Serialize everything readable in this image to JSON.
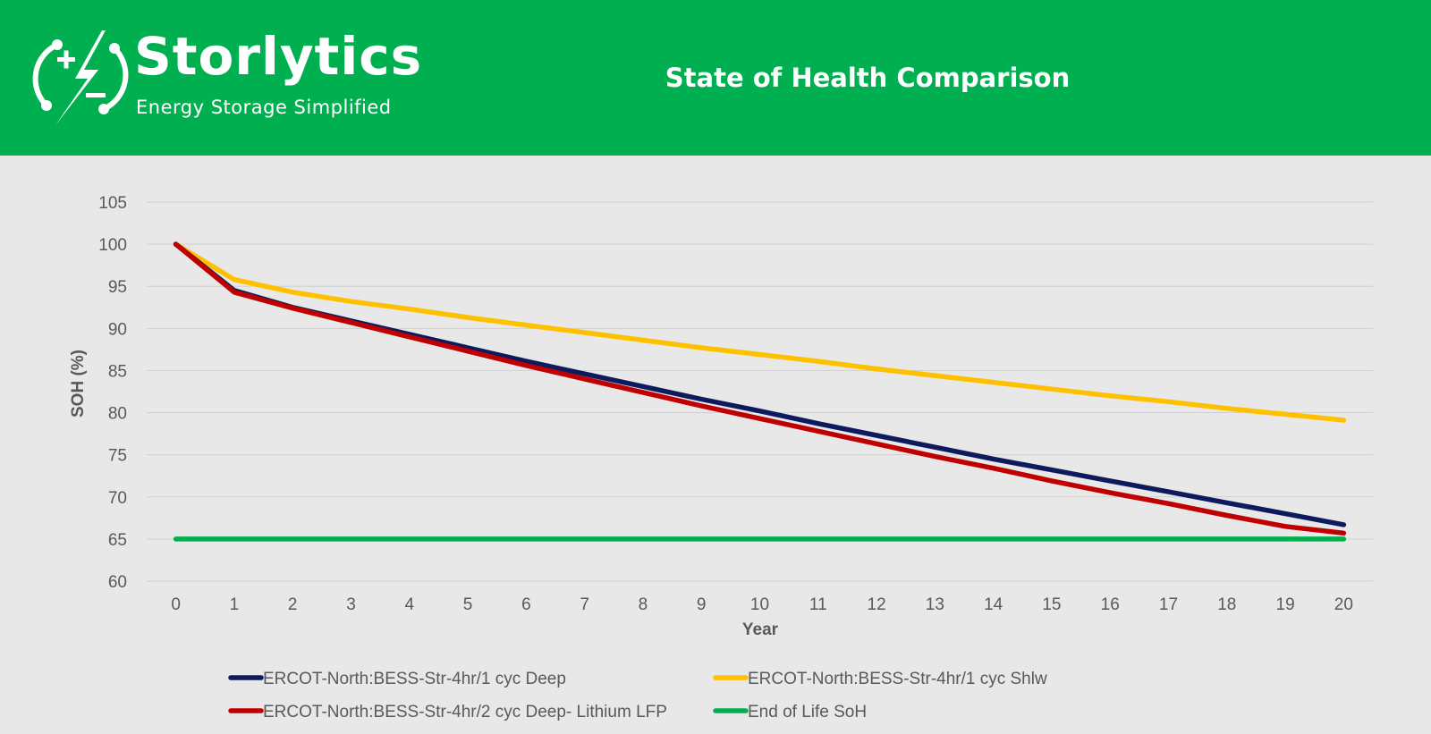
{
  "header": {
    "brand_name": "Storlytics",
    "tagline": "Energy Storage Simplified",
    "title": "State of Health Comparison",
    "background_color": "#00b050",
    "logo_icon": "battery-bolt-icon"
  },
  "chart_data": {
    "type": "line",
    "title": "State of Health Comparison",
    "xlabel": "Year",
    "ylabel": "SOH (%)",
    "ylim": [
      60,
      105
    ],
    "yticks": [
      60,
      65,
      70,
      75,
      80,
      85,
      90,
      95,
      100,
      105
    ],
    "x": [
      0,
      1,
      2,
      3,
      4,
      5,
      6,
      7,
      8,
      9,
      10,
      11,
      12,
      13,
      14,
      15,
      16,
      17,
      18,
      19,
      20
    ],
    "grid": "horizontal",
    "legend_position": "bottom",
    "series": [
      {
        "name": "ERCOT-North:BESS-Str-4hr/1 cyc Deep",
        "color": "#0d1b5e",
        "values": [
          100,
          94.5,
          92.5,
          90.9,
          89.3,
          87.7,
          86.1,
          84.6,
          83.1,
          81.6,
          80.2,
          78.7,
          77.3,
          75.9,
          74.5,
          73.2,
          71.9,
          70.6,
          69.3,
          68.0,
          66.7
        ]
      },
      {
        "name": "ERCOT-North:BESS-Str-4hr/1 cyc Shlw",
        "color": "#ffc000",
        "values": [
          100,
          95.8,
          94.3,
          93.2,
          92.3,
          91.3,
          90.4,
          89.5,
          88.6,
          87.7,
          86.9,
          86.1,
          85.2,
          84.4,
          83.6,
          82.8,
          82.0,
          81.3,
          80.5,
          79.8,
          79.1
        ]
      },
      {
        "name": "ERCOT-North:BESS-Str-4hr/2 cyc Deep- Lithium LFP",
        "color": "#c00000",
        "values": [
          100,
          94.3,
          92.4,
          90.7,
          89.0,
          87.3,
          85.6,
          84.0,
          82.4,
          80.8,
          79.3,
          77.8,
          76.3,
          74.8,
          73.4,
          71.9,
          70.5,
          69.2,
          67.8,
          66.5,
          65.7
        ]
      },
      {
        "name": "End of Life SoH",
        "color": "#00b050",
        "values": [
          65,
          65,
          65,
          65,
          65,
          65,
          65,
          65,
          65,
          65,
          65,
          65,
          65,
          65,
          65,
          65,
          65,
          65,
          65,
          65,
          65
        ]
      }
    ]
  }
}
